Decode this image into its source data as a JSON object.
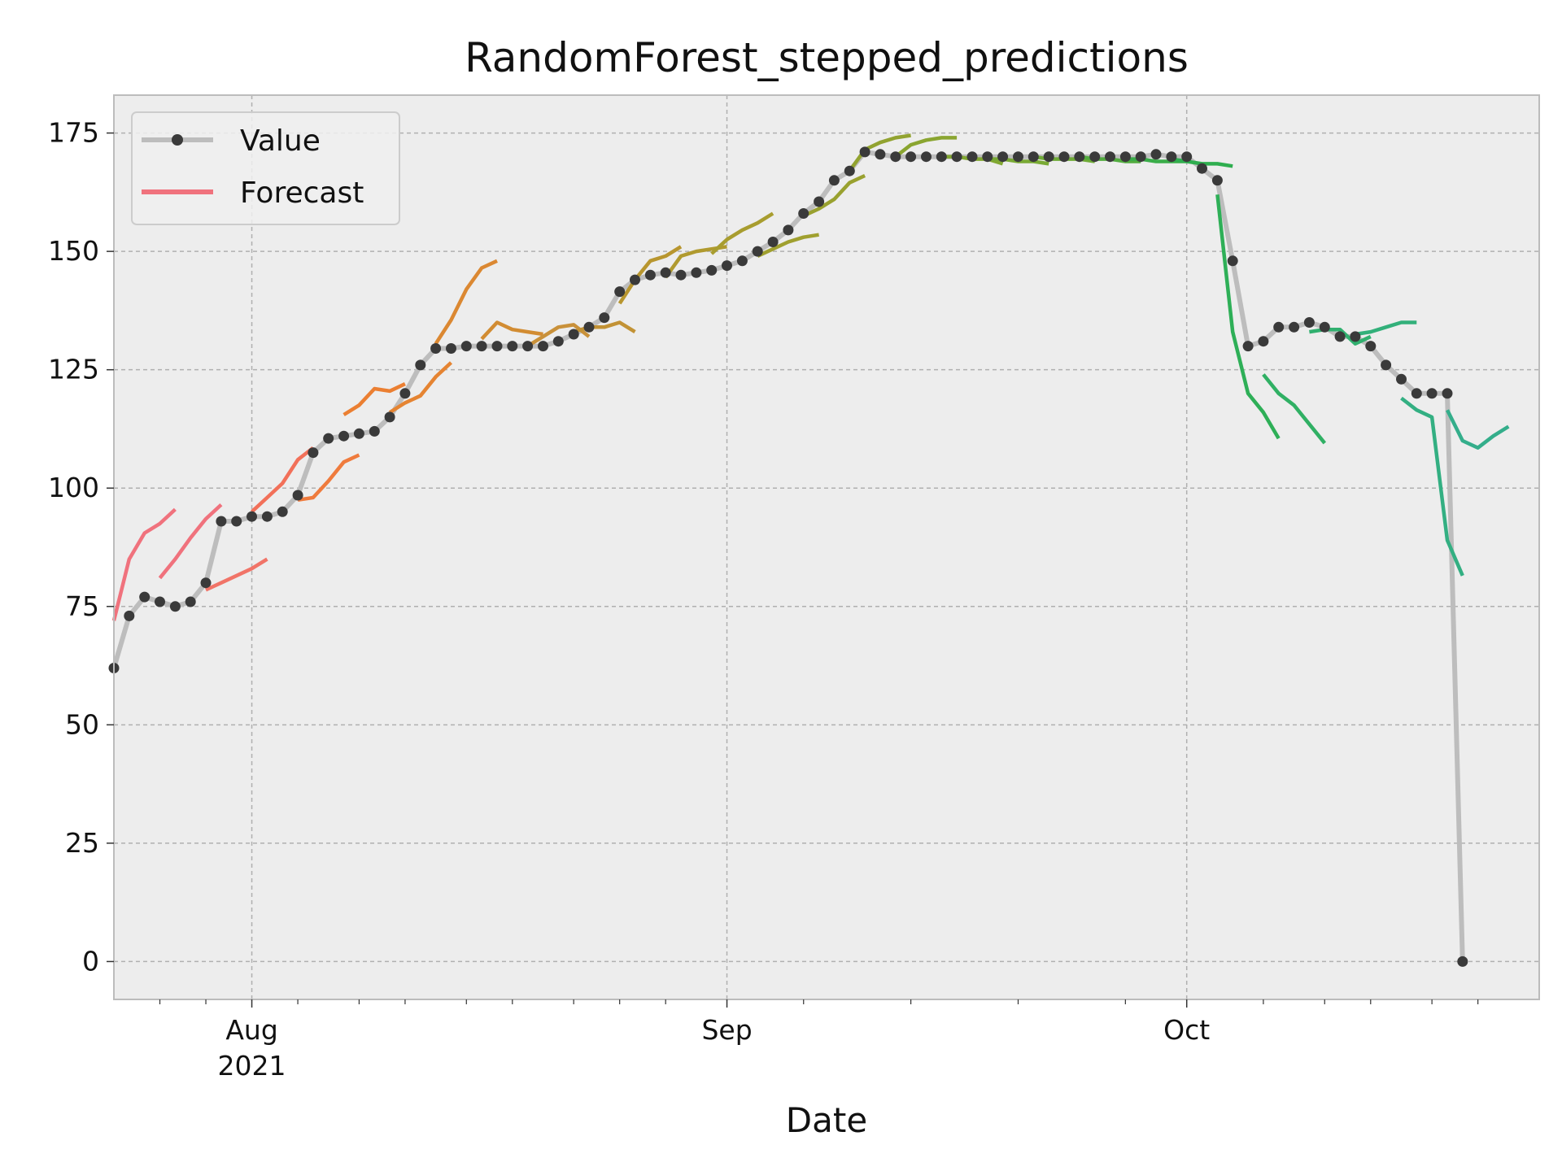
{
  "chart_data": {
    "type": "line",
    "title": "RandomForest_stepped_predictions",
    "xlabel": "Date",
    "ylabel": "",
    "xlim": [
      "2021-07-23",
      "2021-10-24"
    ],
    "ylim": [
      -8,
      183
    ],
    "x_major_ticks": [
      {
        "date": "2021-08-01",
        "label": "Aug",
        "sublabel": "2021"
      },
      {
        "date": "2021-09-01",
        "label": "Sep",
        "sublabel": ""
      },
      {
        "date": "2021-10-01",
        "label": "Oct",
        "sublabel": ""
      }
    ],
    "x_minor_ticks": [
      "2021-07-26",
      "2021-07-29",
      "2021-08-04",
      "2021-08-08",
      "2021-08-11",
      "2021-08-15",
      "2021-08-18",
      "2021-08-22",
      "2021-08-25",
      "2021-08-28",
      "2021-09-06",
      "2021-09-13",
      "2021-09-20",
      "2021-09-27",
      "2021-10-06",
      "2021-10-10",
      "2021-10-13",
      "2021-10-17",
      "2021-10-20"
    ],
    "y_ticks": [
      0,
      25,
      50,
      75,
      100,
      125,
      150,
      175
    ],
    "grid": true,
    "legend": {
      "position": "top-left",
      "entries": [
        {
          "label": "Value",
          "color": "#bdbdbd",
          "marker_color": "#3a3a3a"
        },
        {
          "label": "Forecast",
          "color": "#f0727d"
        }
      ]
    },
    "series": [
      {
        "name": "Value",
        "color": "#bdbdbd",
        "marker_color": "#3a3a3a",
        "points": [
          [
            "2021-07-23",
            62
          ],
          [
            "2021-07-24",
            73
          ],
          [
            "2021-07-25",
            77
          ],
          [
            "2021-07-26",
            76
          ],
          [
            "2021-07-27",
            75
          ],
          [
            "2021-07-28",
            76
          ],
          [
            "2021-07-29",
            80
          ],
          [
            "2021-07-30",
            93
          ],
          [
            "2021-07-31",
            93
          ],
          [
            "2021-08-01",
            94
          ],
          [
            "2021-08-02",
            94
          ],
          [
            "2021-08-03",
            95
          ],
          [
            "2021-08-04",
            98.5
          ],
          [
            "2021-08-05",
            107.5
          ],
          [
            "2021-08-06",
            110.5
          ],
          [
            "2021-08-07",
            111
          ],
          [
            "2021-08-08",
            111.5
          ],
          [
            "2021-08-09",
            112
          ],
          [
            "2021-08-10",
            115
          ],
          [
            "2021-08-11",
            120
          ],
          [
            "2021-08-12",
            126
          ],
          [
            "2021-08-13",
            129.5
          ],
          [
            "2021-08-14",
            129.5
          ],
          [
            "2021-08-15",
            130
          ],
          [
            "2021-08-16",
            130
          ],
          [
            "2021-08-17",
            130
          ],
          [
            "2021-08-18",
            130
          ],
          [
            "2021-08-19",
            130
          ],
          [
            "2021-08-20",
            130
          ],
          [
            "2021-08-21",
            131
          ],
          [
            "2021-08-22",
            132.5
          ],
          [
            "2021-08-23",
            134
          ],
          [
            "2021-08-24",
            136
          ],
          [
            "2021-08-25",
            141.5
          ],
          [
            "2021-08-26",
            144
          ],
          [
            "2021-08-27",
            145
          ],
          [
            "2021-08-28",
            145.5
          ],
          [
            "2021-08-29",
            145
          ],
          [
            "2021-08-30",
            145.5
          ],
          [
            "2021-08-31",
            146
          ],
          [
            "2021-09-01",
            147
          ],
          [
            "2021-09-02",
            148
          ],
          [
            "2021-09-03",
            150
          ],
          [
            "2021-09-04",
            152
          ],
          [
            "2021-09-05",
            154.5
          ],
          [
            "2021-09-06",
            158
          ],
          [
            "2021-09-07",
            160.5
          ],
          [
            "2021-09-08",
            165
          ],
          [
            "2021-09-09",
            167
          ],
          [
            "2021-09-10",
            171
          ],
          [
            "2021-09-11",
            170.5
          ],
          [
            "2021-09-12",
            170
          ],
          [
            "2021-09-13",
            170
          ],
          [
            "2021-09-14",
            170
          ],
          [
            "2021-09-15",
            170
          ],
          [
            "2021-09-16",
            170
          ],
          [
            "2021-09-17",
            170
          ],
          [
            "2021-09-18",
            170
          ],
          [
            "2021-09-19",
            170
          ],
          [
            "2021-09-20",
            170
          ],
          [
            "2021-09-21",
            170
          ],
          [
            "2021-09-22",
            170
          ],
          [
            "2021-09-23",
            170
          ],
          [
            "2021-09-24",
            170
          ],
          [
            "2021-09-25",
            170
          ],
          [
            "2021-09-26",
            170
          ],
          [
            "2021-09-27",
            170
          ],
          [
            "2021-09-28",
            170
          ],
          [
            "2021-09-29",
            170.5
          ],
          [
            "2021-09-30",
            170
          ],
          [
            "2021-10-01",
            170
          ],
          [
            "2021-10-02",
            167.5
          ],
          [
            "2021-10-03",
            165
          ],
          [
            "2021-10-04",
            148
          ],
          [
            "2021-10-05",
            130
          ],
          [
            "2021-10-06",
            131
          ],
          [
            "2021-10-07",
            134
          ],
          [
            "2021-10-08",
            134
          ],
          [
            "2021-10-09",
            135
          ],
          [
            "2021-10-10",
            134
          ],
          [
            "2021-10-11",
            132
          ],
          [
            "2021-10-12",
            132
          ],
          [
            "2021-10-13",
            130
          ],
          [
            "2021-10-14",
            126
          ],
          [
            "2021-10-15",
            123
          ],
          [
            "2021-10-16",
            120
          ],
          [
            "2021-10-17",
            120
          ],
          [
            "2021-10-18",
            120
          ],
          [
            "2021-10-19",
            0
          ]
        ]
      },
      {
        "name": "Forecast",
        "color": "#f0727d",
        "points": [
          [
            "2021-07-23",
            72
          ],
          [
            "2021-07-24",
            85
          ],
          [
            "2021-07-25",
            90.5
          ],
          [
            "2021-07-26",
            92.5
          ],
          [
            "2021-07-27",
            95.5
          ]
        ]
      },
      {
        "color": "#f0727d",
        "points": [
          [
            "2021-07-26",
            81
          ],
          [
            "2021-07-27",
            85
          ],
          [
            "2021-07-28",
            89.5
          ],
          [
            "2021-07-29",
            93.5
          ],
          [
            "2021-07-30",
            96.5
          ]
        ]
      },
      {
        "color": "#f17468",
        "points": [
          [
            "2021-07-29",
            78.5
          ],
          [
            "2021-07-30",
            80
          ],
          [
            "2021-07-31",
            81.5
          ],
          [
            "2021-08-01",
            83
          ],
          [
            "2021-08-02",
            85
          ]
        ]
      },
      {
        "color": "#f27059",
        "points": [
          [
            "2021-08-01",
            95
          ],
          [
            "2021-08-02",
            98
          ],
          [
            "2021-08-03",
            101
          ],
          [
            "2021-08-04",
            106
          ],
          [
            "2021-08-05",
            108.5
          ]
        ]
      },
      {
        "color": "#ef7b3d",
        "points": [
          [
            "2021-08-04",
            97.5
          ],
          [
            "2021-08-05",
            98
          ],
          [
            "2021-08-06",
            101.5
          ],
          [
            "2021-08-07",
            105.5
          ],
          [
            "2021-08-08",
            107
          ]
        ]
      },
      {
        "color": "#eb7f32",
        "points": [
          [
            "2021-08-07",
            115.5
          ],
          [
            "2021-08-08",
            117.5
          ],
          [
            "2021-08-09",
            121
          ],
          [
            "2021-08-10",
            120.5
          ],
          [
            "2021-08-11",
            122
          ]
        ]
      },
      {
        "color": "#e58432",
        "points": [
          [
            "2021-08-10",
            116
          ],
          [
            "2021-08-11",
            118
          ],
          [
            "2021-08-12",
            119.5
          ],
          [
            "2021-08-13",
            123.5
          ],
          [
            "2021-08-14",
            126.5
          ]
        ]
      },
      {
        "color": "#db8832",
        "points": [
          [
            "2021-08-13",
            130.5
          ],
          [
            "2021-08-14",
            135.5
          ],
          [
            "2021-08-15",
            142
          ],
          [
            "2021-08-16",
            146.5
          ],
          [
            "2021-08-17",
            148
          ]
        ]
      },
      {
        "color": "#d28c32",
        "points": [
          [
            "2021-08-16",
            131.5
          ],
          [
            "2021-08-17",
            135
          ],
          [
            "2021-08-18",
            133.5
          ],
          [
            "2021-08-19",
            133
          ],
          [
            "2021-08-20",
            132.5
          ]
        ]
      },
      {
        "color": "#c9913a",
        "points": [
          [
            "2021-08-19",
            130
          ],
          [
            "2021-08-20",
            132
          ],
          [
            "2021-08-21",
            134
          ],
          [
            "2021-08-22",
            134.5
          ],
          [
            "2021-08-23",
            132
          ]
        ]
      },
      {
        "color": "#c29235",
        "points": [
          [
            "2021-08-22",
            133
          ],
          [
            "2021-08-23",
            134
          ],
          [
            "2021-08-24",
            134
          ],
          [
            "2021-08-25",
            135
          ],
          [
            "2021-08-26",
            133
          ]
        ]
      },
      {
        "color": "#b8962f",
        "points": [
          [
            "2021-08-25",
            139
          ],
          [
            "2021-08-26",
            144
          ],
          [
            "2021-08-27",
            148
          ],
          [
            "2021-08-28",
            149
          ],
          [
            "2021-08-29",
            151
          ]
        ]
      },
      {
        "color": "#b09a2f",
        "points": [
          [
            "2021-08-28",
            144.5
          ],
          [
            "2021-08-29",
            149
          ],
          [
            "2021-08-30",
            150
          ],
          [
            "2021-08-31",
            150.5
          ],
          [
            "2021-09-01",
            151
          ]
        ]
      },
      {
        "color": "#a89d2f",
        "points": [
          [
            "2021-08-31",
            149.5
          ],
          [
            "2021-09-01",
            152.5
          ],
          [
            "2021-09-02",
            154.5
          ],
          [
            "2021-09-03",
            156
          ],
          [
            "2021-09-04",
            158
          ]
        ]
      },
      {
        "color": "#a0a02f",
        "points": [
          [
            "2021-09-03",
            149
          ],
          [
            "2021-09-04",
            150.5
          ],
          [
            "2021-09-05",
            152
          ],
          [
            "2021-09-06",
            153
          ],
          [
            "2021-09-07",
            153.5
          ]
        ]
      },
      {
        "color": "#99a12f",
        "points": [
          [
            "2021-09-06",
            157.5
          ],
          [
            "2021-09-07",
            159
          ],
          [
            "2021-09-08",
            161
          ],
          [
            "2021-09-09",
            164.5
          ],
          [
            "2021-09-10",
            166
          ]
        ]
      },
      {
        "color": "#92a330",
        "points": [
          [
            "2021-09-09",
            167
          ],
          [
            "2021-09-10",
            171.5
          ],
          [
            "2021-09-11",
            173
          ],
          [
            "2021-09-12",
            174
          ],
          [
            "2021-09-13",
            174.5
          ]
        ]
      },
      {
        "color": "#8aa530",
        "points": [
          [
            "2021-09-12",
            170
          ],
          [
            "2021-09-13",
            172.5
          ],
          [
            "2021-09-14",
            173.5
          ],
          [
            "2021-09-15",
            174
          ],
          [
            "2021-09-16",
            174
          ]
        ]
      },
      {
        "color": "#82a832",
        "points": [
          [
            "2021-09-15",
            170
          ],
          [
            "2021-09-16",
            170
          ],
          [
            "2021-09-17",
            169.5
          ],
          [
            "2021-09-18",
            169.5
          ],
          [
            "2021-09-19",
            168.5
          ]
        ]
      },
      {
        "color": "#79aa34",
        "points": [
          [
            "2021-09-18",
            169.5
          ],
          [
            "2021-09-19",
            169.5
          ],
          [
            "2021-09-20",
            169
          ],
          [
            "2021-09-21",
            169
          ],
          [
            "2021-09-22",
            168.5
          ]
        ]
      },
      {
        "color": "#6fab37",
        "points": [
          [
            "2021-09-21",
            170
          ],
          [
            "2021-09-22",
            169.5
          ],
          [
            "2021-09-23",
            169.5
          ],
          [
            "2021-09-24",
            169.5
          ],
          [
            "2021-09-25",
            169
          ]
        ]
      },
      {
        "color": "#52ac3f",
        "points": [
          [
            "2021-09-24",
            170
          ],
          [
            "2021-09-25",
            169.5
          ],
          [
            "2021-09-26",
            169.5
          ],
          [
            "2021-09-27",
            169
          ],
          [
            "2021-09-28",
            169
          ]
        ]
      },
      {
        "color": "#3aad49",
        "points": [
          [
            "2021-09-27",
            169.5
          ],
          [
            "2021-09-28",
            169.5
          ],
          [
            "2021-09-29",
            169
          ],
          [
            "2021-09-30",
            169
          ],
          [
            "2021-10-01",
            169
          ]
        ]
      },
      {
        "color": "#2fae4f",
        "points": [
          [
            "2021-09-30",
            169.5
          ],
          [
            "2021-10-01",
            169
          ],
          [
            "2021-10-02",
            168.5
          ],
          [
            "2021-10-03",
            168.5
          ],
          [
            "2021-10-04",
            168
          ]
        ]
      },
      {
        "color": "#2eaf57",
        "points": [
          [
            "2021-10-03",
            162
          ],
          [
            "2021-10-04",
            133
          ],
          [
            "2021-10-05",
            120
          ],
          [
            "2021-10-06",
            116
          ],
          [
            "2021-10-07",
            110.5
          ]
        ]
      },
      {
        "color": "#30b064",
        "points": [
          [
            "2021-10-06",
            124
          ],
          [
            "2021-10-07",
            120
          ],
          [
            "2021-10-08",
            117.5
          ],
          [
            "2021-10-09",
            113.5
          ],
          [
            "2021-10-10",
            109.5
          ]
        ]
      },
      {
        "color": "#31b06f",
        "points": [
          [
            "2021-10-09",
            133
          ],
          [
            "2021-10-10",
            133.5
          ],
          [
            "2021-10-11",
            133.5
          ],
          [
            "2021-10-12",
            130.5
          ],
          [
            "2021-10-13",
            132
          ]
        ]
      },
      {
        "color": "#32b07a",
        "points": [
          [
            "2021-10-12",
            132.5
          ],
          [
            "2021-10-13",
            133
          ],
          [
            "2021-10-14",
            134
          ],
          [
            "2021-10-15",
            135
          ],
          [
            "2021-10-16",
            135
          ]
        ]
      },
      {
        "color": "#33af82",
        "points": [
          [
            "2021-10-15",
            119
          ],
          [
            "2021-10-16",
            116.5
          ],
          [
            "2021-10-17",
            115
          ],
          [
            "2021-10-18",
            89
          ],
          [
            "2021-10-19",
            81.5
          ]
        ]
      },
      {
        "color": "#34ae8b",
        "points": [
          [
            "2021-10-18",
            116.5
          ],
          [
            "2021-10-19",
            110
          ],
          [
            "2021-10-20",
            108.5
          ],
          [
            "2021-10-21",
            111
          ],
          [
            "2021-10-22",
            113
          ]
        ]
      }
    ]
  }
}
